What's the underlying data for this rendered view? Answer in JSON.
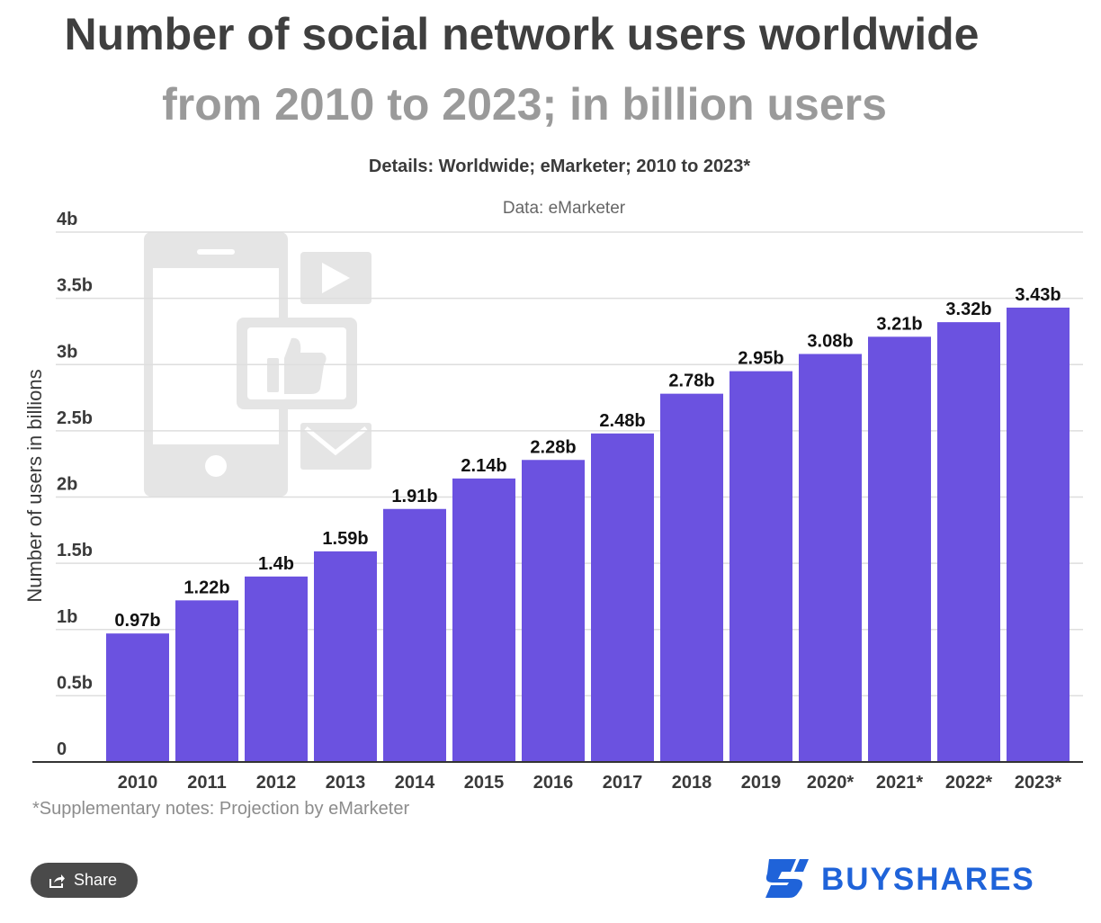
{
  "title": "Number of social network users worldwide",
  "subtitle": "from 2010 to 2023; in billion users",
  "details": "Details: Worldwide; eMarketer; 2010 to 2023*",
  "source": "Data: eMarketer",
  "note": "*Supplementary notes: Projection by eMarketer",
  "share_label": "Share",
  "brand_name": "BUYSHARES",
  "colors": {
    "bar": "#6b52e0",
    "grid": "#dedede",
    "brand": "#1f63d9",
    "illustration": "#e5e5e5"
  },
  "icons": [
    "phone-icon",
    "play-icon",
    "thumbs-up-icon",
    "mail-icon",
    "share-icon",
    "buyshares-logo-icon"
  ],
  "chart_data": {
    "type": "bar",
    "title": "Number of social network users worldwide",
    "subtitle": "from 2010 to 2023; in billion users",
    "ylabel": "Number of users in billions",
    "xlabel": "",
    "ylim": [
      0,
      4
    ],
    "yticks": [
      "0",
      "0.5b",
      "1b",
      "1.5b",
      "2b",
      "2.5b",
      "3b",
      "3.5b",
      "4b"
    ],
    "categories": [
      "2010",
      "2011",
      "2012",
      "2013",
      "2014",
      "2015",
      "2016",
      "2017",
      "2018",
      "2019",
      "2020*",
      "2021*",
      "2022*",
      "2023*"
    ],
    "values": [
      0.97,
      1.22,
      1.4,
      1.59,
      1.91,
      2.14,
      2.28,
      2.48,
      2.78,
      2.95,
      3.08,
      3.21,
      3.32,
      3.43
    ],
    "data_labels": [
      "0.97b",
      "1.22b",
      "1.4b",
      "1.59b",
      "1.91b",
      "2.14b",
      "2.28b",
      "2.48b",
      "2.78b",
      "2.95b",
      "3.08b",
      "3.21b",
      "3.32b",
      "3.43b"
    ],
    "grid": true,
    "legend": "none"
  }
}
